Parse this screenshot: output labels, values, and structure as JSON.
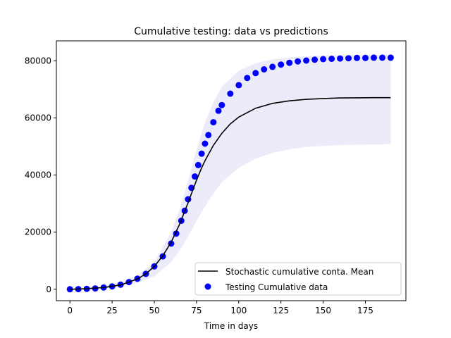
{
  "chart_data": {
    "type": "line",
    "title": "Cumulative testing: data vs predictions",
    "xlabel": "Time in days",
    "ylabel": "",
    "xlim": [
      -8,
      199
    ],
    "ylim": [
      -4000,
      87000
    ],
    "xticks": [
      0,
      25,
      50,
      75,
      100,
      125,
      150,
      175
    ],
    "yticks": [
      0,
      20000,
      40000,
      60000,
      80000
    ],
    "grid": false,
    "legend_position": "lower-right",
    "colors": {
      "mean_line": "#000000",
      "data_points": "#0000ff",
      "band": "#ebebfa"
    },
    "series": [
      {
        "name": "Stochastic cumulative conta. Mean",
        "kind": "line",
        "x": [
          0,
          10,
          20,
          30,
          40,
          45,
          50,
          55,
          60,
          65,
          70,
          72,
          75,
          78,
          80,
          85,
          90,
          95,
          100,
          110,
          120,
          130,
          140,
          150,
          160,
          170,
          180,
          190
        ],
        "y": [
          0,
          200,
          600,
          1500,
          3600,
          5400,
          8000,
          11700,
          16500,
          22800,
          30300,
          33500,
          38200,
          42500,
          45000,
          50400,
          54600,
          57900,
          60300,
          63400,
          65100,
          66000,
          66500,
          66800,
          67000,
          67050,
          67100,
          67100
        ]
      },
      {
        "name": "Testing Cumulative data",
        "kind": "scatter",
        "x": [
          0,
          5,
          10,
          15,
          20,
          25,
          30,
          35,
          40,
          45,
          50,
          55,
          60,
          63,
          66,
          68,
          70,
          72,
          74,
          76,
          78,
          80,
          82,
          85,
          88,
          90,
          95,
          100,
          105,
          110,
          115,
          120,
          125,
          130,
          135,
          140,
          145,
          150,
          155,
          160,
          165,
          170,
          175,
          180,
          185,
          190
        ],
        "y": [
          0,
          50,
          150,
          300,
          600,
          1000,
          1600,
          2500,
          3700,
          5400,
          8000,
          11500,
          16000,
          19500,
          24000,
          27500,
          31500,
          35500,
          39500,
          43500,
          47500,
          51000,
          54000,
          58500,
          62500,
          64500,
          68500,
          71500,
          74000,
          75700,
          77000,
          77900,
          78700,
          79300,
          79800,
          80100,
          80400,
          80600,
          80700,
          80800,
          80900,
          81000,
          81000,
          81100,
          81100,
          81100
        ]
      },
      {
        "name": "",
        "kind": "band",
        "x": [
          0,
          20,
          40,
          50,
          60,
          65,
          70,
          75,
          80,
          85,
          90,
          100,
          110,
          120,
          130,
          140,
          150,
          160,
          170,
          180,
          190
        ],
        "lower": [
          0,
          300,
          2200,
          4500,
          9500,
          13500,
          18500,
          24000,
          29000,
          33500,
          37500,
          42500,
          45800,
          47800,
          49000,
          49800,
          50200,
          50500,
          50600,
          50700,
          50800
        ],
        "upper": [
          0,
          800,
          4800,
          9500,
          20000,
          28000,
          38000,
          49000,
          58500,
          65500,
          71000,
          76500,
          79200,
          80500,
          81200,
          81600,
          81900,
          82000,
          82100,
          82100,
          82100
        ]
      }
    ]
  }
}
